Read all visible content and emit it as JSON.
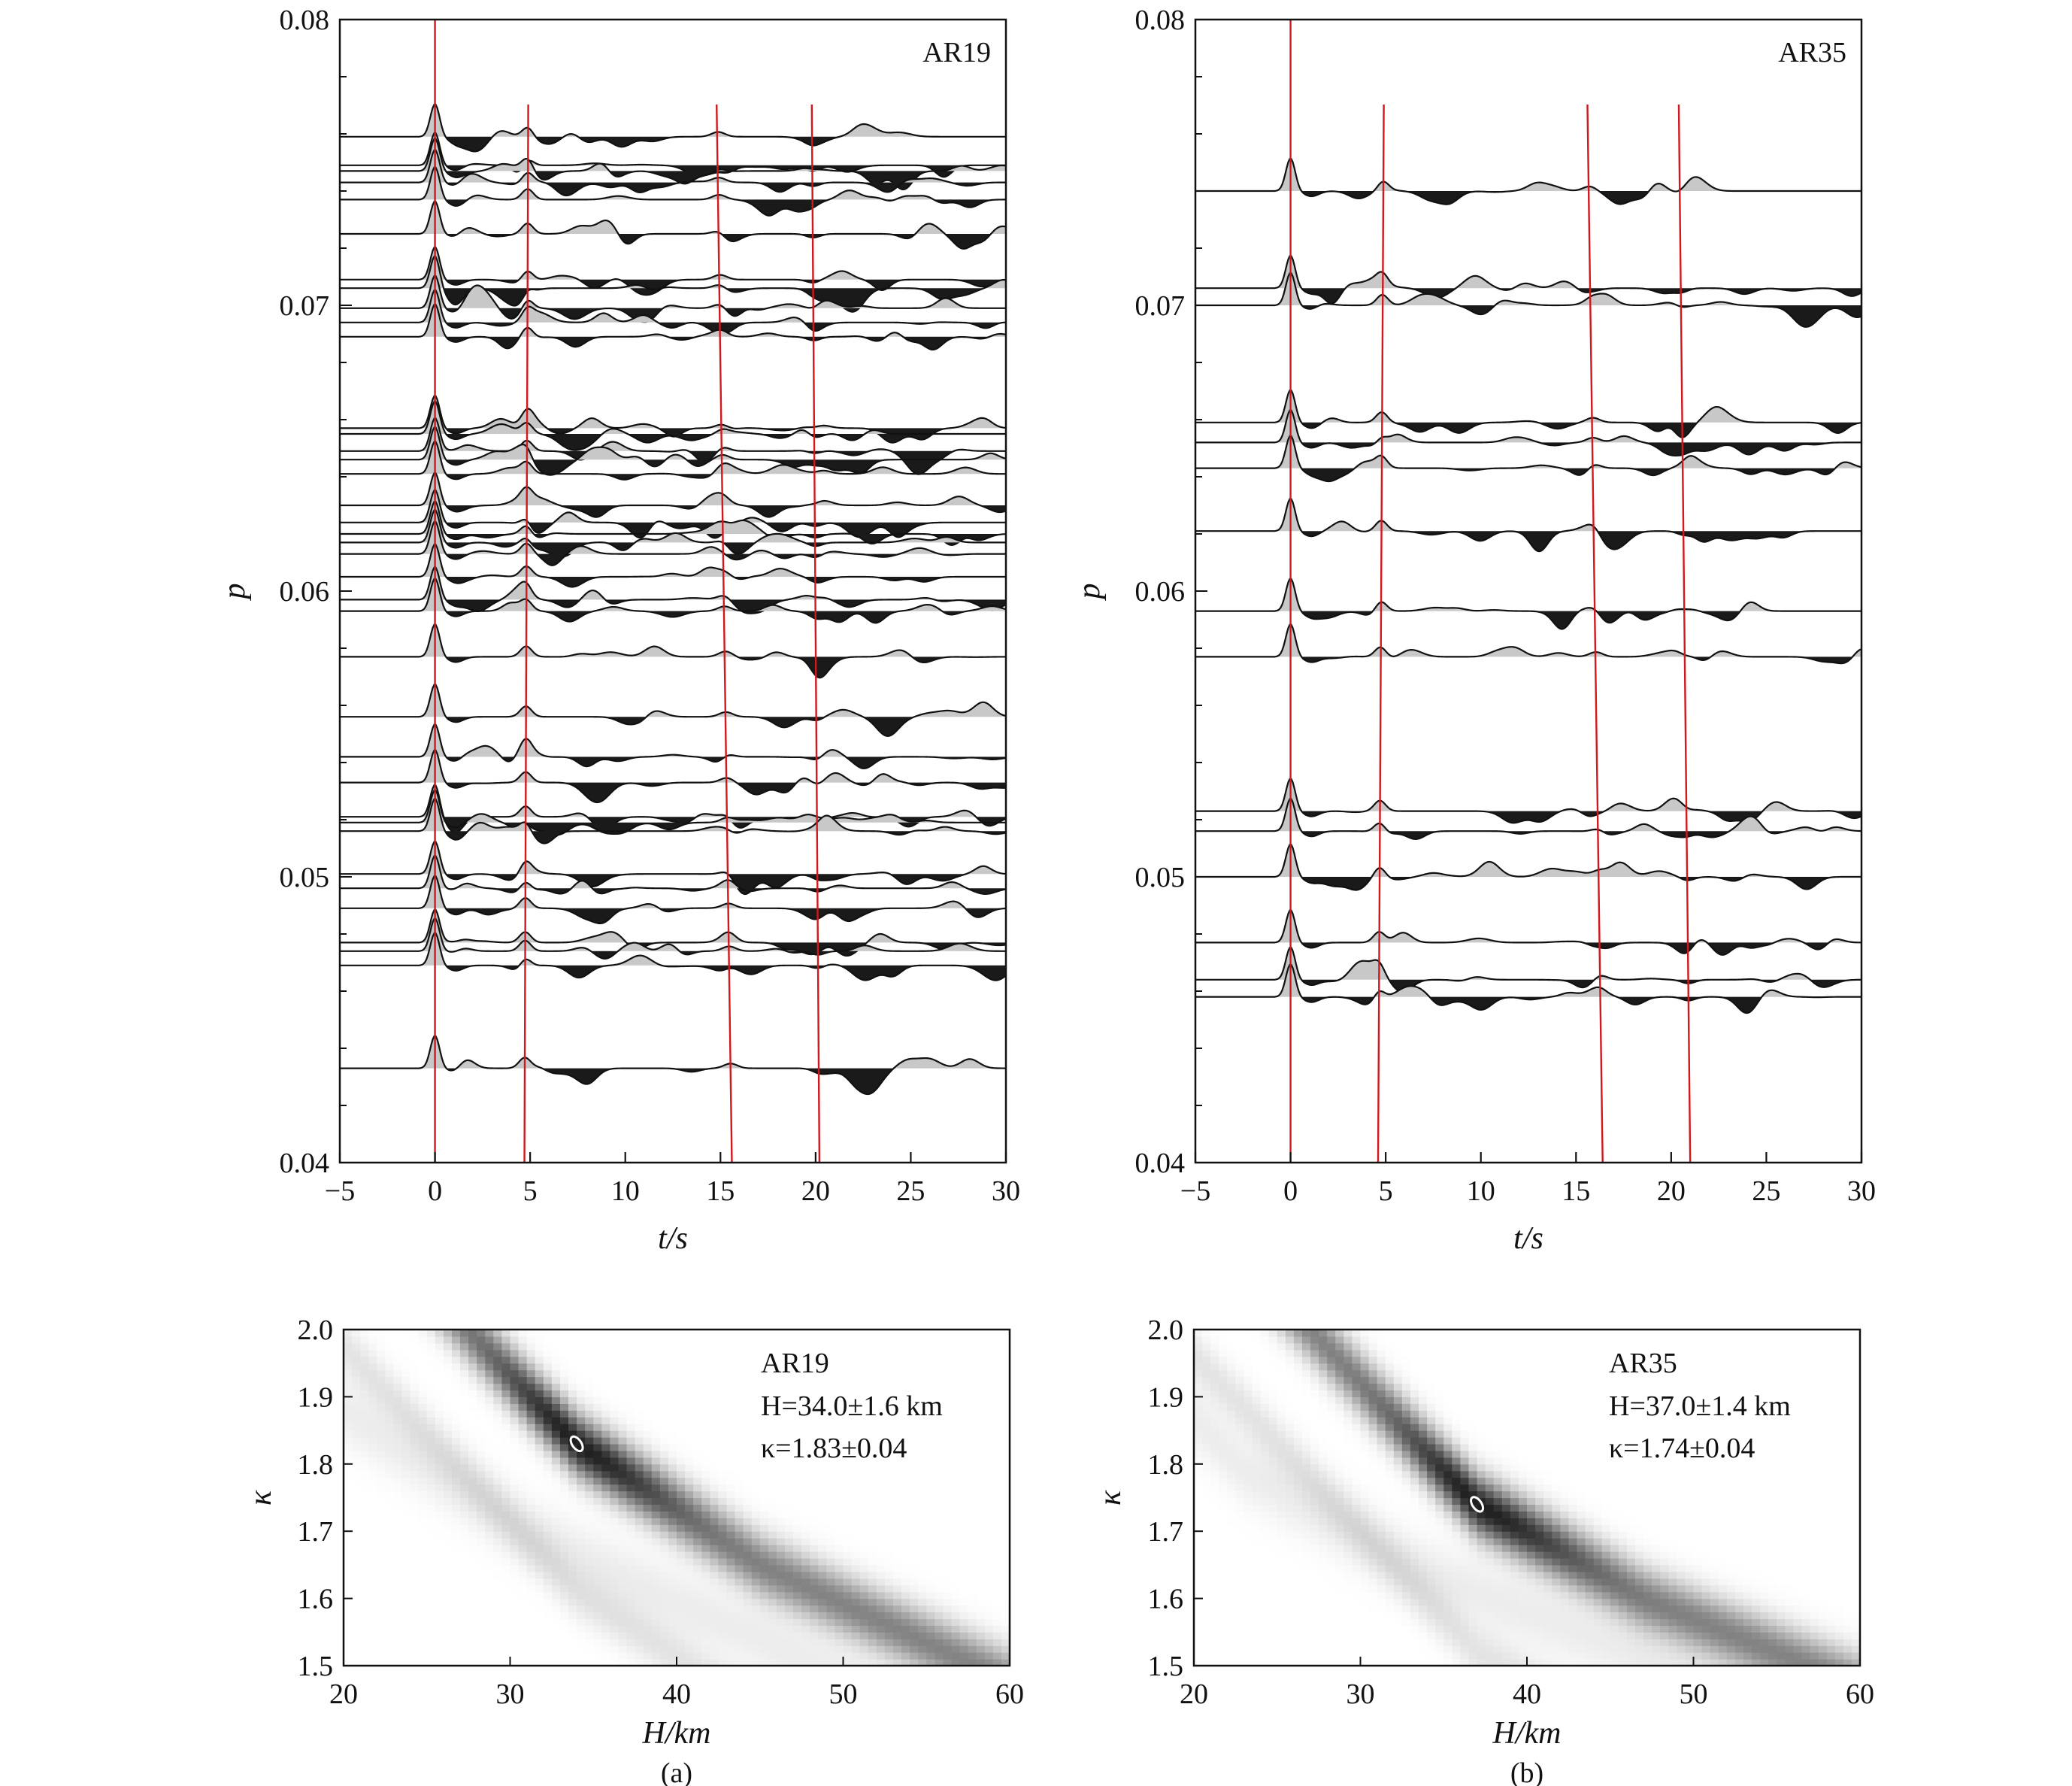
{
  "panels": [
    {
      "panel_label": "(a)",
      "station": "AR19",
      "hk_result_lines": [
        "AR19",
        "H=34.0±1.6 km",
        "κ=1.83±0.04"
      ]
    },
    {
      "panel_label": "(b)",
      "station": "AR35",
      "hk_result_lines": [
        "AR35",
        "H=37.0±1.4 km",
        "κ=1.74±0.04"
      ]
    }
  ],
  "colors": {
    "trace_line": "#111111",
    "positive_fill": "#c8c8c8",
    "negative_fill": "#1a1a1a",
    "phase_line": "#d0181e",
    "max_marker": "#ffffff",
    "stack_max": "#2a2a2a"
  },
  "chart_data": [
    {
      "type": "line",
      "subtype": "receiver-function record section",
      "station": "AR19",
      "xlabel": "t/s",
      "ylabel": "p",
      "xlim": [
        -5,
        30
      ],
      "ylim": [
        0.04,
        0.08
      ],
      "xticks": [
        -5,
        0,
        5,
        10,
        15,
        20,
        25,
        30
      ],
      "yticks": [
        0.04,
        0.05,
        0.06,
        0.07,
        0.08
      ],
      "xtick_labels": [
        "−5",
        "0",
        "5",
        "10",
        "15",
        "20",
        "25",
        "30"
      ],
      "ytick_labels": [
        "0.04",
        "0.05",
        "0.06",
        "0.07",
        "0.08"
      ],
      "trace_rayparams": [
        0.0759,
        0.0749,
        0.0747,
        0.0743,
        0.0737,
        0.0725,
        0.0709,
        0.0706,
        0.0699,
        0.0694,
        0.0689,
        0.0657,
        0.0655,
        0.0649,
        0.0646,
        0.0641,
        0.063,
        0.0624,
        0.062,
        0.0617,
        0.0613,
        0.0605,
        0.0597,
        0.0593,
        0.0577,
        0.0556,
        0.0542,
        0.0533,
        0.0521,
        0.0519,
        0.0516,
        0.0501,
        0.0496,
        0.0489,
        0.0477,
        0.0474,
        0.0469,
        0.0433
      ],
      "phase_lines": [
        {
          "t_top": 0.0,
          "t_bottom": 0.0
        },
        {
          "t_top": 4.9,
          "t_bottom": 4.7
        },
        {
          "t_top": 14.8,
          "t_bottom": 15.6
        },
        {
          "t_top": 19.8,
          "t_bottom": 20.2
        }
      ]
    },
    {
      "type": "line",
      "subtype": "receiver-function record section",
      "station": "AR35",
      "xlabel": "t/s",
      "ylabel": "p",
      "xlim": [
        -5,
        30
      ],
      "ylim": [
        0.04,
        0.08
      ],
      "xticks": [
        -5,
        0,
        5,
        10,
        15,
        20,
        25,
        30
      ],
      "yticks": [
        0.04,
        0.05,
        0.06,
        0.07,
        0.08
      ],
      "xtick_labels": [
        "−5",
        "0",
        "5",
        "10",
        "15",
        "20",
        "25",
        "30"
      ],
      "ytick_labels": [
        "0.04",
        "0.05",
        "0.06",
        "0.07",
        "0.08"
      ],
      "trace_rayparams": [
        0.074,
        0.0706,
        0.07,
        0.0659,
        0.0652,
        0.0643,
        0.0621,
        0.0593,
        0.0577,
        0.0523,
        0.0516,
        0.05,
        0.0477,
        0.0464,
        0.0458
      ],
      "phase_lines": [
        {
          "t_top": 0.0,
          "t_bottom": 0.0
        },
        {
          "t_top": 4.9,
          "t_bottom": 4.6
        },
        {
          "t_top": 15.6,
          "t_bottom": 16.4
        },
        {
          "t_top": 20.4,
          "t_bottom": 21.0
        }
      ]
    },
    {
      "type": "heatmap",
      "subtype": "H-kappa stacking",
      "station": "AR19",
      "xlabel": "H/km",
      "ylabel": "κ",
      "xlim": [
        20,
        60
      ],
      "ylim": [
        1.5,
        2.0
      ],
      "xticks": [
        20,
        30,
        40,
        50,
        60
      ],
      "yticks": [
        1.5,
        1.6,
        1.7,
        1.8,
        1.9,
        2.0
      ],
      "xtick_labels": [
        "20",
        "30",
        "40",
        "50",
        "60"
      ],
      "ytick_labels": [
        "1.5",
        "1.6",
        "1.7",
        "1.8",
        "1.9",
        "2.0"
      ],
      "best_H": 34.0,
      "best_kappa": 1.83,
      "curve_points": [
        [
          27.5,
          2.0
        ],
        [
          34.0,
          1.83
        ],
        [
          45.0,
          1.65
        ],
        [
          58.0,
          1.5
        ]
      ]
    },
    {
      "type": "heatmap",
      "subtype": "H-kappa stacking",
      "station": "AR35",
      "xlabel": "H/km",
      "ylabel": "κ",
      "xlim": [
        20,
        60
      ],
      "ylim": [
        1.5,
        2.0
      ],
      "xticks": [
        20,
        30,
        40,
        50,
        60
      ],
      "yticks": [
        1.5,
        1.6,
        1.7,
        1.8,
        1.9,
        2.0
      ],
      "xtick_labels": [
        "20",
        "30",
        "40",
        "50",
        "60"
      ],
      "ytick_labels": [
        "1.5",
        "1.6",
        "1.7",
        "1.8",
        "1.9",
        "2.0"
      ],
      "best_H": 37.0,
      "best_kappa": 1.74,
      "curve_points": [
        [
          27.0,
          2.0
        ],
        [
          37.0,
          1.74
        ],
        [
          47.0,
          1.6
        ],
        [
          57.0,
          1.5
        ]
      ]
    }
  ]
}
